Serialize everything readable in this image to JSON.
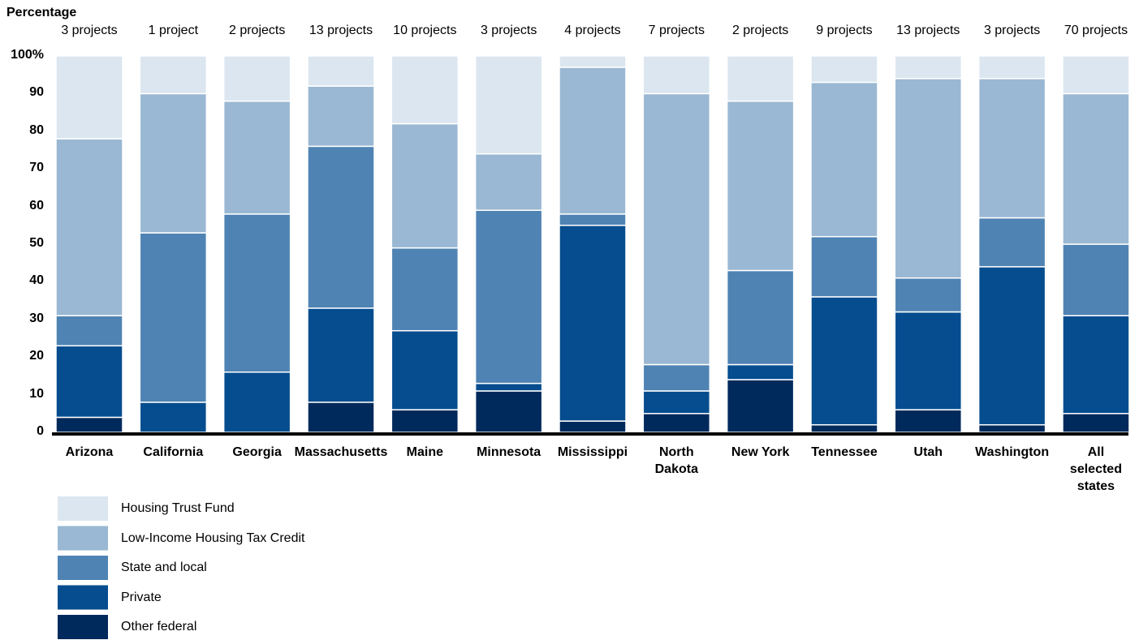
{
  "chart_data": {
    "type": "stacked_bar",
    "y_axis_label": "Percentage",
    "categories": [
      "Arizona",
      "California",
      "Georgia",
      "Massachusetts",
      "Maine",
      "Minnesota",
      "Mississippi",
      "North Dakota",
      "New York",
      "Tennessee",
      "Utah",
      "Washington",
      "All selected states"
    ],
    "project_labels": [
      "3 projects",
      "1 project",
      "2 projects",
      "13 projects",
      "10 projects",
      "3 projects",
      "4 projects",
      "7 projects",
      "2 projects",
      "9 projects",
      "13 projects",
      "3 projects",
      "70 projects"
    ],
    "series": [
      {
        "name": "Other federal",
        "color": "#002a5c",
        "values": [
          4,
          0,
          0,
          8,
          6,
          11,
          3,
          5,
          14,
          2,
          6,
          2,
          5
        ]
      },
      {
        "name": "Private",
        "color": "#054d8e",
        "values": [
          19,
          8,
          16,
          25,
          21,
          2,
          52,
          6,
          4,
          34,
          26,
          42,
          26
        ]
      },
      {
        "name": "State and local",
        "color": "#4f83b3",
        "values": [
          8,
          45,
          42,
          43,
          22,
          46,
          3,
          7,
          25,
          16,
          9,
          13,
          19
        ]
      },
      {
        "name": "Low-Income Housing Tax Credit",
        "color": "#9ab8d3",
        "values": [
          47,
          37,
          30,
          16,
          33,
          15,
          39,
          72,
          45,
          41,
          53,
          37,
          40
        ]
      },
      {
        "name": "Housing Trust Fund",
        "color": "#dbe6f0",
        "values": [
          22,
          10,
          12,
          8,
          18,
          26,
          3,
          10,
          12,
          7,
          6,
          6,
          10
        ]
      }
    ],
    "ylim": [
      0,
      100
    ],
    "yticks": [
      0,
      10,
      20,
      30,
      40,
      50,
      60,
      70,
      80,
      90,
      {
        "value": 100,
        "label": "100%"
      }
    ]
  }
}
